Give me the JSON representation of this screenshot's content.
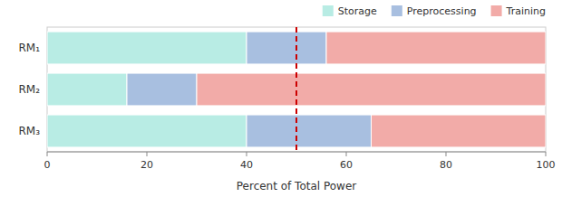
{
  "chart_data": {
    "type": "bar",
    "orientation": "horizontal",
    "stacked": true,
    "categories": [
      "RM₁",
      "RM₂",
      "RM₃"
    ],
    "series": [
      {
        "name": "Storage",
        "color": "#b8ece4",
        "values": [
          40,
          16,
          40
        ]
      },
      {
        "name": "Preprocessing",
        "color": "#a8bfe0",
        "values": [
          16,
          14,
          25
        ]
      },
      {
        "name": "Training",
        "color": "#f2aba8",
        "values": [
          44,
          70,
          35
        ]
      }
    ],
    "x_label": "Percent of Total Power",
    "xlim": [
      0,
      100
    ],
    "xticks": [
      0,
      20,
      40,
      60,
      80,
      100
    ],
    "reference_line": {
      "x": 50,
      "color": "#cc0000",
      "line_style": "dashed"
    },
    "legend": "top-right",
    "grid": false
  }
}
